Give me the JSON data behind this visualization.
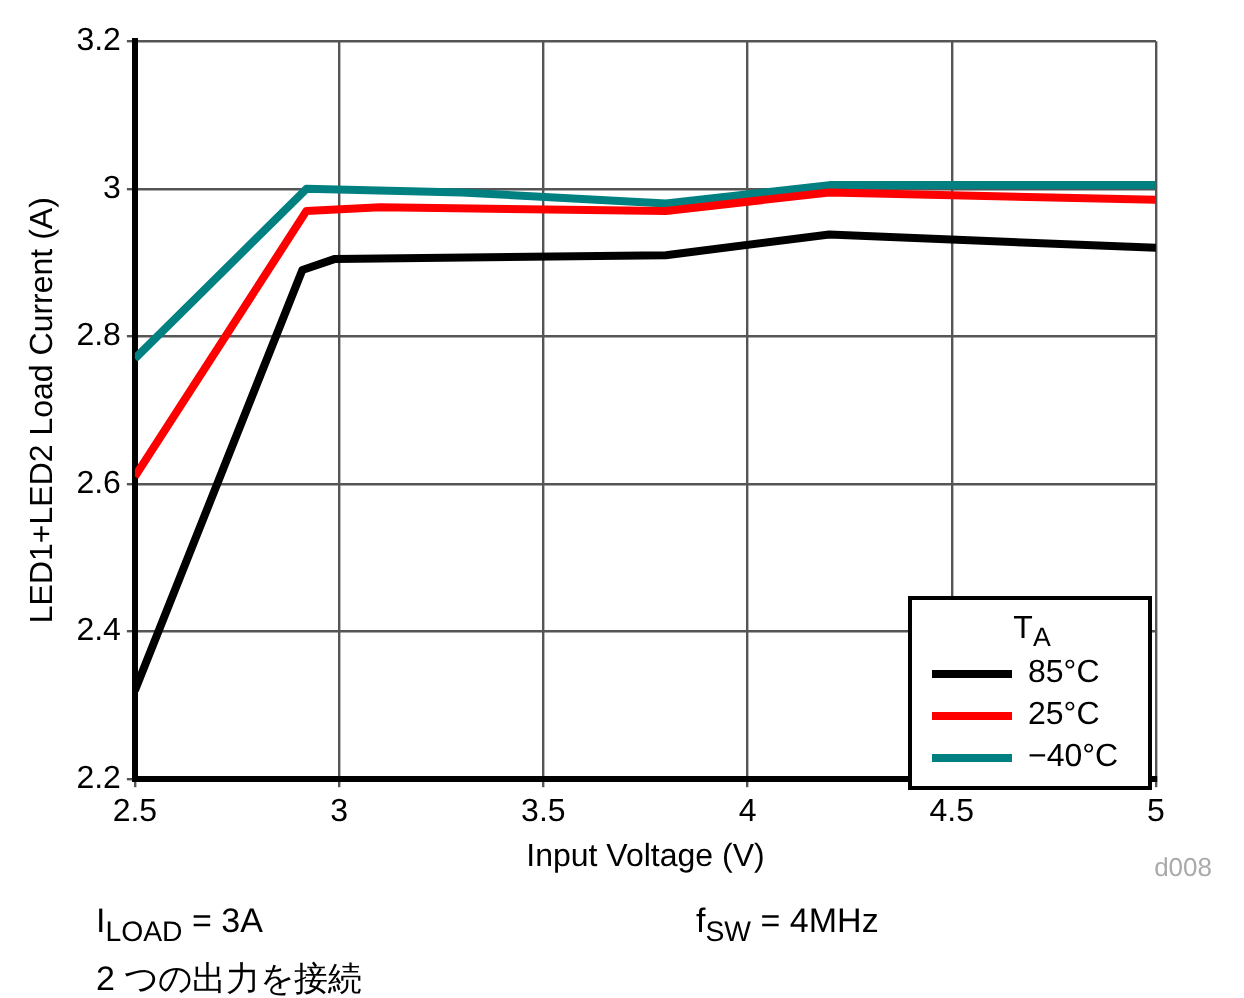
{
  "chart_data": {
    "type": "line",
    "xlabel": "Input Voltage (V)",
    "ylabel": "LED1+LED2 Load Current (A)",
    "legend_title": "T$_{A}$",
    "xlim": [
      2.5,
      5
    ],
    "xticks": [
      2.5,
      3,
      3.5,
      4,
      4.5,
      5
    ],
    "ylim": [
      2.2,
      3.2
    ],
    "yticks": [
      2.2,
      2.4,
      2.6,
      2.8,
      3,
      3.2
    ],
    "grid": true,
    "legend": "bottom right",
    "marker": "none",
    "line_style": "solid",
    "series": [
      {
        "name": "85°C",
        "color": "#000000",
        "x": [
          2.5,
          2.91,
          2.99,
          3.8,
          4.2,
          5
        ],
        "values": [
          2.32,
          2.89,
          2.905,
          2.91,
          2.938,
          2.92
        ]
      },
      {
        "name": "25°C",
        "color": "#ff0000",
        "x": [
          2.5,
          2.92,
          3.1,
          3.8,
          4.2,
          5
        ],
        "values": [
          2.61,
          2.97,
          2.975,
          2.97,
          2.995,
          2.985
        ]
      },
      {
        "name": "−40°C",
        "color": "#008080",
        "x": [
          2.5,
          2.92,
          3.3,
          3.8,
          4.2,
          5
        ],
        "values": [
          2.77,
          3.0,
          2.995,
          2.98,
          3.005,
          3.005
        ]
      }
    ],
    "annotations": [
      "d008",
      "I$_{LOAD}$ = 3A",
      "f$_{SW}$ = 4MHz",
      "2 つの出力を接続"
    ]
  }
}
